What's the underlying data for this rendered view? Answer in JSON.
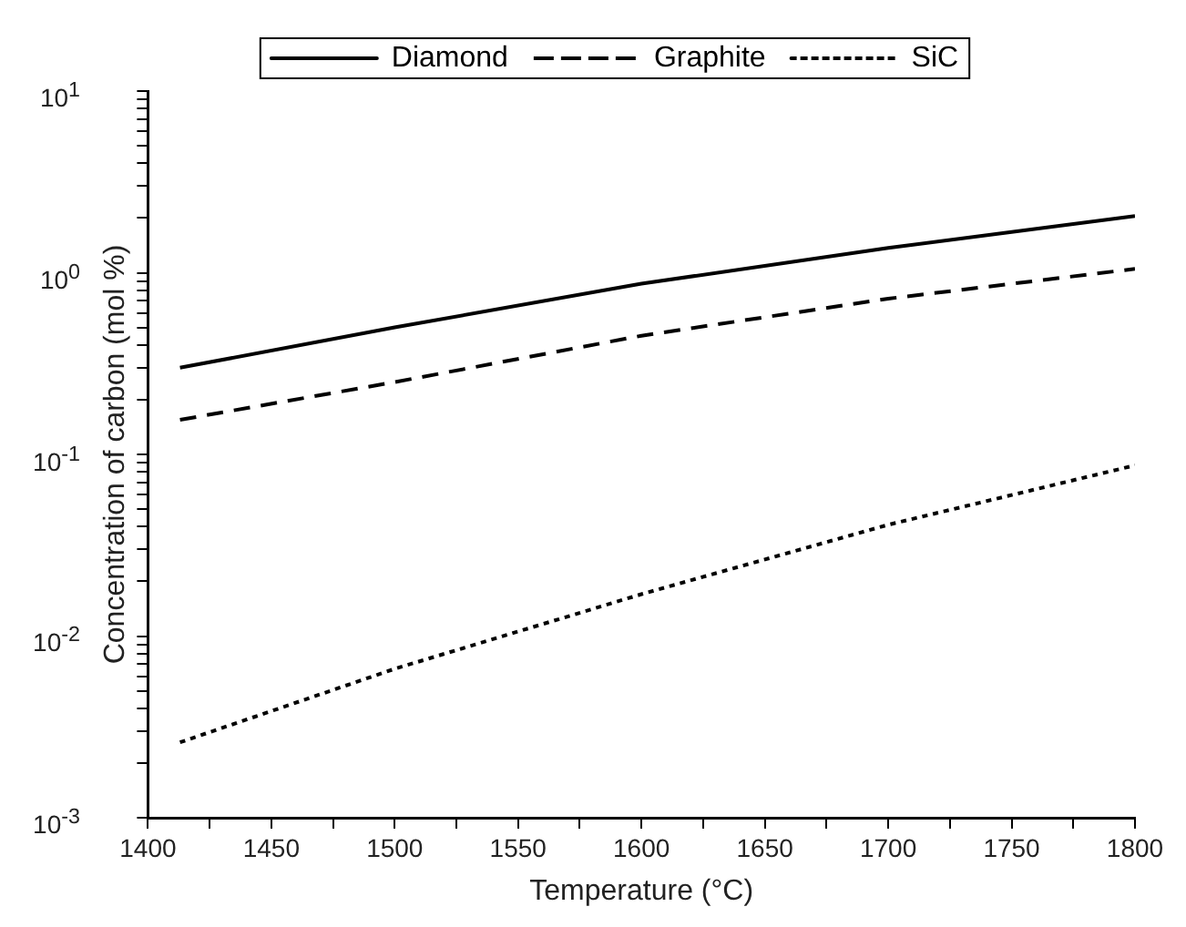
{
  "chart_data": {
    "type": "line",
    "xlabel": "Temperature (°C)",
    "ylabel": "Concentration of carbon (mol %)",
    "x": [
      1413,
      1500,
      1600,
      1700,
      1800
    ],
    "series": [
      {
        "name": "Diamond",
        "color": "#000000",
        "line_style": "solid",
        "values": [
          0.3,
          0.5,
          0.87,
          1.37,
          2.05
        ]
      },
      {
        "name": "Graphite",
        "color": "#000000",
        "line_style": "dashed",
        "values": [
          0.155,
          0.25,
          0.45,
          0.72,
          1.05
        ]
      },
      {
        "name": "SiC",
        "color": "#000000",
        "line_style": "dotted",
        "values": [
          0.0026,
          0.0066,
          0.017,
          0.041,
          0.087
        ]
      }
    ],
    "xlim": [
      1400,
      1800
    ],
    "xticks": [
      1400,
      {
        "value": 1425,
        "label": null
      },
      1450,
      {
        "value": 1475,
        "label": null
      },
      1500,
      {
        "value": 1525,
        "label": null
      },
      1550,
      {
        "value": 1575,
        "label": null
      },
      1600,
      {
        "value": 1625,
        "label": null
      },
      1650,
      {
        "value": 1675,
        "label": null
      },
      1700,
      {
        "value": 1725,
        "label": null
      },
      1750,
      {
        "value": 1775,
        "label": null
      },
      1800
    ],
    "ylim": [
      0.001,
      10
    ],
    "yticks": [
      {
        "value": 0.001,
        "label": "10$^{-3}$"
      },
      {
        "value": 0.002,
        "label": null
      },
      {
        "value": 0.003,
        "label": null
      },
      {
        "value": 0.004,
        "label": null
      },
      {
        "value": 0.005,
        "label": null
      },
      {
        "value": 0.006,
        "label": null
      },
      {
        "value": 0.007,
        "label": null
      },
      {
        "value": 0.008,
        "label": null
      },
      {
        "value": 0.009,
        "label": null
      },
      {
        "value": 0.01,
        "label": "10$^{-2}$"
      },
      {
        "value": 0.02,
        "label": null
      },
      {
        "value": 0.03,
        "label": null
      },
      {
        "value": 0.04,
        "label": null
      },
      {
        "value": 0.05,
        "label": null
      },
      {
        "value": 0.06,
        "label": null
      },
      {
        "value": 0.07,
        "label": null
      },
      {
        "value": 0.08,
        "label": null
      },
      {
        "value": 0.09,
        "label": null
      },
      {
        "value": 0.1,
        "label": "10$^{-1}$"
      },
      {
        "value": 0.2,
        "label": null
      },
      {
        "value": 0.3,
        "label": null
      },
      {
        "value": 0.4,
        "label": null
      },
      {
        "value": 0.5,
        "label": null
      },
      {
        "value": 0.6,
        "label": null
      },
      {
        "value": 0.7,
        "label": null
      },
      {
        "value": 0.8,
        "label": null
      },
      {
        "value": 0.9,
        "label": null
      },
      {
        "value": 1,
        "label": "10$^{0}$"
      },
      {
        "value": 2,
        "label": null
      },
      {
        "value": 3,
        "label": null
      },
      {
        "value": 4,
        "label": null
      },
      {
        "value": 5,
        "label": null
      },
      {
        "value": 6,
        "label": null
      },
      {
        "value": 7,
        "label": null
      },
      {
        "value": 8,
        "label": null
      },
      {
        "value": 9,
        "label": null
      },
      {
        "value": 10,
        "label": "10$^{1}$"
      }
    ],
    "log": "y",
    "grid": false,
    "legend": "top",
    "marker": "none"
  }
}
